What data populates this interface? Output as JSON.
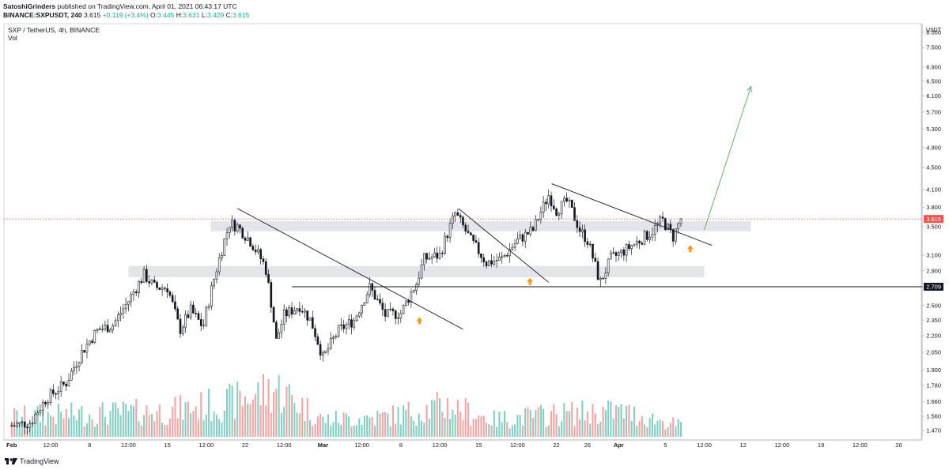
{
  "header": {
    "author": "SatoshiGrinders",
    "published": "published on TradingView.com, April 01, 2021 06:43:17 UTC",
    "symbol": "BINANCE:SXPUSDT, 240",
    "last": "3.615",
    "change": "+0.119 (+3.4%)",
    "o_label": "O:",
    "o_value": "3.445",
    "h_label": "H:",
    "h_value": "3.631",
    "l_label": "L:",
    "l_value": "3.429",
    "c_label": "C:",
    "c_value": "3.615"
  },
  "pane": {
    "title": "SXP / TetherUS, 4h, BINANCE",
    "volume_label": "Vol"
  },
  "footer": {
    "brand": "TradingView"
  },
  "colors": {
    "up": "#26a69a",
    "down": "#ef5350",
    "candle_up_body": "#ffffff",
    "candle_down_body": "#131722",
    "wick": "#131722",
    "vol_up": "#7fcfc3",
    "vol_down": "#f4a3a1",
    "zone": "#dfe1e6",
    "projection": "#4caf50",
    "marker": "#ff9800",
    "price_tag_bg": "#ef5350",
    "level_tag_bg": "#131722"
  },
  "chart_data": {
    "type": "candlestick",
    "price_scale_label": "USDT",
    "y_ticks": [
      "8.000",
      "7.500",
      "6.900",
      "6.500",
      "6.100",
      "5.700",
      "5.300",
      "4.900",
      "4.500",
      "4.100",
      "3.800",
      "3.500",
      "3.100",
      "2.900",
      "2.700",
      "2.500",
      "2.350",
      "2.200",
      "2.050",
      "1.900",
      "1.780",
      "1.660",
      "1.560",
      "1.470"
    ],
    "y_tick_values": [
      8.0,
      7.5,
      6.9,
      6.5,
      6.1,
      5.7,
      5.3,
      4.9,
      4.5,
      4.1,
      3.8,
      3.5,
      3.1,
      2.9,
      2.7,
      2.5,
      2.35,
      2.2,
      2.05,
      1.9,
      1.78,
      1.66,
      1.56,
      1.47
    ],
    "y_scale": "log",
    "ylim": [
      1.43,
      8.3
    ],
    "x_ticks": [
      "Feb",
      "12:00",
      "8",
      "12:00",
      "15",
      "12:00",
      "22",
      "12:00",
      "Mar",
      "12:00",
      "8",
      "12:00",
      "15",
      "12:00",
      "22",
      "26",
      "Apr",
      "5",
      "12:00",
      "12",
      "12:00",
      "19",
      "12:00",
      "26"
    ],
    "x_tick_days": [
      0,
      2.5,
      5,
      7.5,
      10,
      12.5,
      15,
      17.5,
      20,
      22.5,
      25,
      27.5,
      30,
      32.5,
      35,
      37,
      39,
      42,
      44.5,
      47,
      49.5,
      52,
      54.5,
      57
    ],
    "last_price": 3.615,
    "last_price_label": "3.615",
    "level_price": 2.709,
    "level_label": "2.709",
    "anchors": [
      [
        0,
        1.5
      ],
      [
        1.2,
        1.52
      ],
      [
        2.2,
        1.68
      ],
      [
        3.5,
        1.8
      ],
      [
        4.5,
        2.05
      ],
      [
        5.5,
        2.25
      ],
      [
        6.5,
        2.3
      ],
      [
        7.5,
        2.55
      ],
      [
        8.5,
        2.85
      ],
      [
        9.2,
        2.7
      ],
      [
        10,
        2.7
      ],
      [
        10.8,
        2.25
      ],
      [
        11.5,
        2.45
      ],
      [
        12.3,
        2.28
      ],
      [
        13.2,
        2.95
      ],
      [
        14,
        3.55
      ],
      [
        14.5,
        3.5
      ],
      [
        15.3,
        3.3
      ],
      [
        16.3,
        2.95
      ],
      [
        17,
        2.15
      ],
      [
        17.5,
        2.4
      ],
      [
        18.5,
        2.5
      ],
      [
        19.2,
        2.35
      ],
      [
        20,
        2.0
      ],
      [
        21,
        2.25
      ],
      [
        22,
        2.35
      ],
      [
        23,
        2.7
      ],
      [
        24,
        2.4
      ],
      [
        25,
        2.42
      ],
      [
        26,
        2.75
      ],
      [
        26.5,
        3.05
      ],
      [
        27.5,
        3.1
      ],
      [
        28.5,
        3.7
      ],
      [
        29.5,
        3.3
      ],
      [
        30.5,
        3.0
      ],
      [
        31.5,
        3.05
      ],
      [
        32.5,
        3.3
      ],
      [
        33.5,
        3.45
      ],
      [
        34.5,
        4.0
      ],
      [
        35,
        3.75
      ],
      [
        35.7,
        3.9
      ],
      [
        36.5,
        3.45
      ],
      [
        37,
        3.3
      ],
      [
        37.8,
        2.75
      ],
      [
        38.5,
        3.05
      ],
      [
        39.3,
        3.15
      ],
      [
        40,
        3.25
      ],
      [
        41,
        3.4
      ],
      [
        41.8,
        3.6
      ],
      [
        42.5,
        3.35
      ],
      [
        43,
        3.62
      ]
    ],
    "volume_anchors": [
      [
        0,
        0.35
      ],
      [
        5,
        0.4
      ],
      [
        10,
        0.45
      ],
      [
        14,
        0.6
      ],
      [
        17,
        0.85
      ],
      [
        20,
        0.3
      ],
      [
        24,
        0.35
      ],
      [
        28,
        0.55
      ],
      [
        31,
        0.3
      ],
      [
        35,
        0.4
      ],
      [
        39,
        0.45
      ],
      [
        43,
        0.2
      ]
    ],
    "zones": [
      {
        "day_from": 12.8,
        "day_to": 47.5,
        "price_low": 3.43,
        "price_high": 3.58
      },
      {
        "day_from": 7.5,
        "day_to": 44.5,
        "price_low": 2.82,
        "price_high": 2.96
      }
    ],
    "horizontal_line": {
      "day_from": 18,
      "price": 2.709
    },
    "trendlines": [
      {
        "from": [
          14.5,
          3.78
        ],
        "to": [
          29,
          2.26
        ]
      },
      {
        "from": [
          28.7,
          3.78
        ],
        "to": [
          34.5,
          2.76
        ]
      },
      {
        "from": [
          34.7,
          4.2
        ],
        "to": [
          45,
          3.23
        ]
      }
    ],
    "projection": {
      "from": [
        44.5,
        3.45
      ],
      "to": [
        47.5,
        6.35
      ]
    },
    "markers": [
      {
        "day": 26.2,
        "price": 2.42
      },
      {
        "day": 33.3,
        "price": 2.86
      },
      {
        "day": 43.6,
        "price": 3.29
      }
    ],
    "x_day_range": [
      -0.5,
      58.5
    ]
  }
}
